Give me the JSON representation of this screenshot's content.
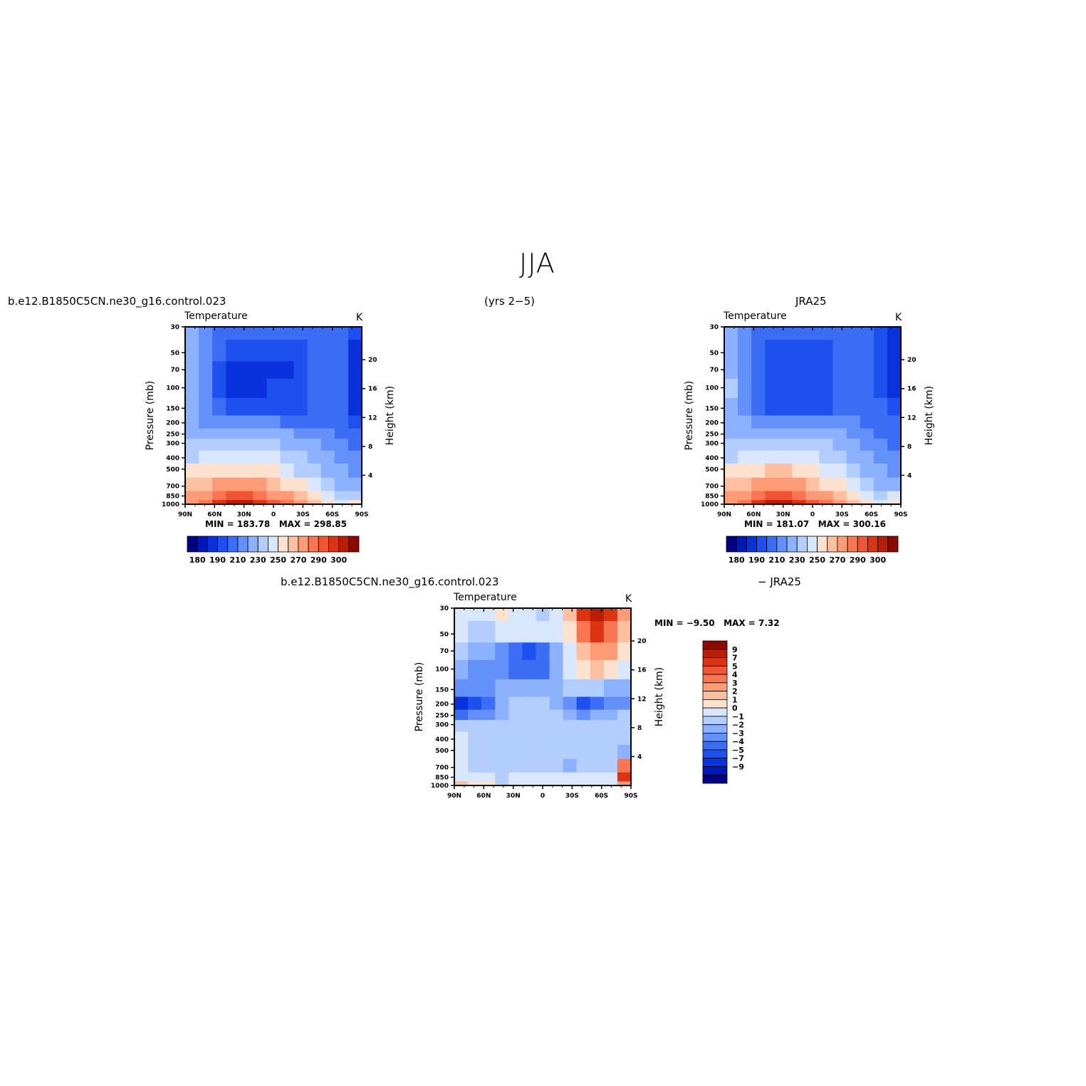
{
  "figure": {
    "title": "JJA",
    "case_name": "b.e12.B1850C5CN.ne30_g16.control.023",
    "years": "(yrs 2−5)",
    "obs_name": "JRA25",
    "diff_suffix": "− JRA25"
  },
  "panels": {
    "model": {
      "variable": "Temperature",
      "units": "K",
      "min_label": "MIN =",
      "min": "183.78",
      "max_label": "MAX =",
      "max": "298.85"
    },
    "obs": {
      "variable": "Temperature",
      "units": "K",
      "min_label": "MIN =",
      "min": "181.07",
      "max_label": "MAX =",
      "max": "300.16"
    },
    "diff": {
      "variable": "Temperature",
      "units": "K",
      "min_label": "MIN =",
      "min": "−9.50",
      "max_label": "MAX =",
      "max": "7.32"
    }
  },
  "axes": {
    "xlabel": "",
    "ylabel": "Pressure (mb)",
    "y2label": "Height (km)",
    "lat_ticks": [
      "90N",
      "60N",
      "30N",
      "0",
      "30S",
      "60S",
      "90S"
    ],
    "lat_values": [
      90,
      60,
      30,
      0,
      -30,
      -60,
      -90
    ],
    "pressure_ticks": [
      30,
      50,
      70,
      100,
      150,
      200,
      250,
      300,
      400,
      500,
      700,
      850,
      1000
    ],
    "height_ticks": [
      20,
      16,
      12,
      8,
      4
    ],
    "ylim": [
      1000,
      30
    ],
    "y_scale": "log"
  },
  "colorbars": {
    "abs_colors": [
      "#000080",
      "#0018b8",
      "#0a32dc",
      "#1e50f0",
      "#3c6ef5",
      "#6490fa",
      "#8cb1fe",
      "#b3cdfd",
      "#d9e7fc",
      "#fde1cf",
      "#fcbfa0",
      "#fc9b76",
      "#f87652",
      "#f25534",
      "#dc3313",
      "#b81e07",
      "#8c0a00"
    ],
    "abs_labels": [
      "180",
      "190",
      "210",
      "230",
      "250",
      "270",
      "290",
      "300"
    ],
    "diff_colors": [
      "#000080",
      "#0018b8",
      "#0a32dc",
      "#1e50f0",
      "#3c6ef5",
      "#6490fa",
      "#8cb1fe",
      "#b3cdfd",
      "#d9e7fc",
      "#fde1cf",
      "#fcbfa0",
      "#fc9b76",
      "#f87652",
      "#f25534",
      "#dc3313",
      "#b81e07",
      "#8c0a00"
    ],
    "diff_labels": [
      "9",
      "7",
      "5",
      "4",
      "3",
      "2",
      "1",
      "0",
      "−1",
      "−2",
      "−3",
      "−4",
      "−5",
      "−7",
      "−9"
    ]
  },
  "chart_data": [
    {
      "type": "heatmap",
      "title": "Temperature",
      "xlabel": "",
      "ylabel": "Pressure (mb)",
      "x": [
        90,
        60,
        30,
        0,
        -30,
        -60,
        -90
      ],
      "y": [
        30,
        50,
        70,
        100,
        150,
        200,
        250,
        300,
        400,
        500,
        700,
        850,
        1000
      ],
      "z": [
        [
          225,
          215,
          205,
          205,
          205,
          205,
          205,
          205,
          205,
          205,
          205,
          205,
          190
        ],
        [
          225,
          212,
          200,
          195,
          195,
          195,
          195,
          195,
          198,
          205,
          205,
          205,
          188
        ],
        [
          225,
          212,
          195,
          188,
          188,
          188,
          188,
          188,
          195,
          205,
          205,
          200,
          186
        ],
        [
          225,
          212,
          195,
          188,
          187,
          188,
          190,
          190,
          195,
          205,
          205,
          200,
          186
        ],
        [
          225,
          212,
          200,
          195,
          195,
          195,
          195,
          195,
          198,
          205,
          205,
          200,
          188
        ],
        [
          220,
          215,
          212,
          212,
          212,
          212,
          210,
          208,
          207,
          207,
          205,
          200,
          192
        ],
        [
          225,
          225,
          225,
          225,
          225,
          225,
          222,
          220,
          218,
          215,
          210,
          205,
          200
        ],
        [
          230,
          232,
          232,
          232,
          232,
          232,
          230,
          228,
          225,
          220,
          215,
          210,
          205
        ],
        [
          238,
          242,
          245,
          245,
          245,
          243,
          240,
          235,
          230,
          225,
          220,
          215,
          210
        ],
        [
          250,
          255,
          258,
          258,
          258,
          255,
          250,
          245,
          238,
          232,
          225,
          220,
          215
        ],
        [
          262,
          268,
          272,
          274,
          274,
          270,
          265,
          258,
          250,
          242,
          235,
          228,
          222
        ],
        [
          270,
          275,
          282,
          285,
          285,
          282,
          278,
          270,
          262,
          255,
          245,
          238,
          235
        ],
        [
          275,
          280,
          290,
          295,
          296,
          292,
          288,
          280,
          272,
          262,
          252,
          245,
          250
        ]
      ],
      "units": "K",
      "series": [
        {
          "name": "b.e12.B1850C5CN.ne30_g16.control.023",
          "min": 183.78,
          "max": 298.85
        }
      ]
    },
    {
      "type": "heatmap",
      "title": "Temperature",
      "xlabel": "",
      "ylabel": "Pressure (mb)",
      "x": [
        90,
        60,
        30,
        0,
        -30,
        -60,
        -90
      ],
      "y": [
        30,
        50,
        70,
        100,
        150,
        200,
        250,
        300,
        400,
        500,
        700,
        850,
        1000
      ],
      "z": [
        [
          225,
          218,
          208,
          205,
          205,
          205,
          205,
          205,
          205,
          208,
          208,
          195,
          185
        ],
        [
          225,
          215,
          200,
          198,
          198,
          198,
          198,
          198,
          200,
          208,
          205,
          195,
          186
        ],
        [
          225,
          215,
          200,
          195,
          195,
          195,
          195,
          198,
          200,
          208,
          205,
          195,
          186
        ],
        [
          235,
          215,
          200,
          195,
          193,
          194,
          195,
          198,
          200,
          208,
          205,
          195,
          188
        ],
        [
          225,
          215,
          205,
          198,
          198,
          198,
          198,
          198,
          200,
          208,
          205,
          200,
          190
        ],
        [
          225,
          222,
          218,
          215,
          215,
          215,
          215,
          215,
          213,
          210,
          208,
          205,
          200
        ],
        [
          225,
          225,
          225,
          225,
          225,
          225,
          225,
          225,
          222,
          218,
          212,
          208,
          205
        ],
        [
          230,
          232,
          232,
          232,
          232,
          232,
          232,
          230,
          226,
          222,
          216,
          212,
          208
        ],
        [
          238,
          242,
          245,
          246,
          246,
          245,
          242,
          238,
          232,
          227,
          220,
          215,
          212
        ],
        [
          250,
          255,
          258,
          260,
          260,
          258,
          254,
          248,
          240,
          234,
          227,
          220,
          218
        ],
        [
          262,
          268,
          272,
          275,
          275,
          272,
          266,
          258,
          250,
          242,
          235,
          228,
          225
        ],
        [
          270,
          276,
          282,
          285,
          285,
          282,
          278,
          270,
          262,
          255,
          245,
          238,
          240
        ],
        [
          275,
          282,
          290,
          295,
          296,
          292,
          288,
          280,
          272,
          262,
          252,
          245,
          252
        ]
      ],
      "units": "K",
      "series": [
        {
          "name": "JRA25",
          "min": 181.07,
          "max": 300.16
        }
      ]
    },
    {
      "type": "heatmap",
      "title": "Temperature",
      "xlabel": "",
      "ylabel": "Pressure (mb)",
      "x": [
        90,
        60,
        30,
        0,
        -30,
        -60,
        -90
      ],
      "y": [
        30,
        50,
        70,
        100,
        150,
        200,
        250,
        300,
        400,
        500,
        700,
        850,
        1000
      ],
      "z": [
        [
          -0.5,
          -0.5,
          -0.5,
          0.5,
          -0.5,
          -0.5,
          -1.5,
          -0.5,
          1.5,
          5.5,
          7,
          5.5,
          2.5
        ],
        [
          -1,
          -1.5,
          -1.5,
          -1,
          -1,
          -1,
          -1,
          -1,
          0.5,
          3.5,
          5,
          3.5,
          1.5
        ],
        [
          -1.5,
          -2.5,
          -2.5,
          -3.5,
          -4.5,
          -5.5,
          -4.5,
          -2.5,
          -0.5,
          1,
          2.5,
          2,
          0.5
        ],
        [
          -3,
          -3.5,
          -3.5,
          -3.5,
          -4.5,
          -5,
          -4.5,
          -2.5,
          -0.5,
          0.5,
          1,
          0.5,
          -0.5
        ],
        [
          -3.5,
          -4,
          -4,
          -3,
          -2.5,
          -3,
          -2.5,
          -2.5,
          -2,
          -1.5,
          -1.5,
          -2.5,
          -3
        ],
        [
          -8,
          -5.5,
          -5,
          -3,
          -2,
          -1.5,
          -1.5,
          -2.5,
          -4,
          -5.5,
          -4.5,
          -4,
          -3.5
        ],
        [
          -5,
          -4,
          -4,
          -2.5,
          -1.5,
          -1.5,
          -1.5,
          -2,
          -3,
          -3.5,
          -3,
          -2.5,
          -2
        ],
        [
          -2,
          -2,
          -2,
          -2,
          -1.5,
          -1.5,
          -1.5,
          -1.5,
          -2,
          -2,
          -2,
          -1.5,
          -1.5
        ],
        [
          -1,
          -1.5,
          -1.5,
          -2,
          -1.5,
          -1.5,
          -1.5,
          -1.5,
          -2,
          -2,
          -1.5,
          -1.5,
          -1.5
        ],
        [
          -1,
          -1.5,
          -1.5,
          -2,
          -1.5,
          -1.5,
          -1.5,
          -1.5,
          -2,
          -2,
          -1.5,
          -1.5,
          -2.5
        ],
        [
          -1,
          -1.5,
          -1.5,
          -2,
          -1.5,
          -1.5,
          -1.5,
          -1.5,
          -2.5,
          -2,
          -1.5,
          -1.5,
          3.5
        ],
        [
          -0.5,
          -0.5,
          -0.5,
          -2,
          -0.5,
          -0.5,
          -0.5,
          -0.5,
          -1,
          -1,
          -0.5,
          -0.5,
          5
        ],
        [
          1.5,
          0.5,
          0.5,
          -2,
          -0.5,
          -0.5,
          -0.5,
          -0.5,
          -0.5,
          -0.5,
          -0.5,
          -0.5,
          2
        ]
      ],
      "units": "K",
      "series": [
        {
          "name": "b.e12.B1850C5CN.ne30_g16.control.023 − JRA25",
          "min": -9.5,
          "max": 7.32
        }
      ]
    }
  ]
}
